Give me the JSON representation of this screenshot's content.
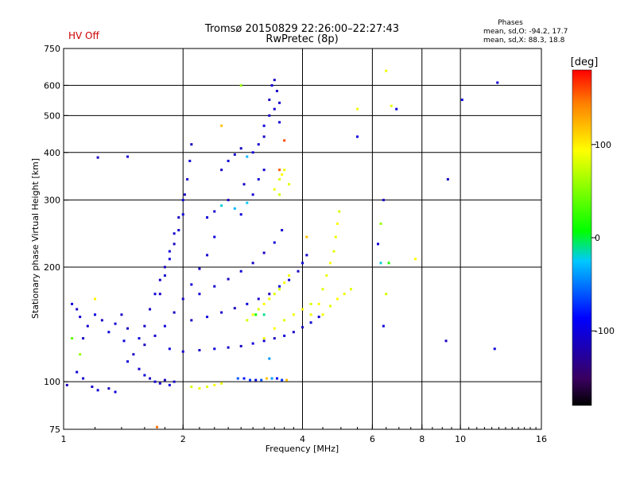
{
  "header": {
    "title_line1": "Tromsø 20150829 22:26:00–22:27:43",
    "title_line2": "RwPretec (8p)",
    "status": "HV Off",
    "status_color": "#cc0000",
    "phases_title": "Phases",
    "phases_o": "mean, sd,O: -94.2, 17.7",
    "phases_x": "mean, sd,X: 88.3, 18.8"
  },
  "colorbar": {
    "unit_label": "[deg]",
    "min": -180,
    "max": 180,
    "ticks": [
      {
        "value": 100,
        "label": "100"
      },
      {
        "value": 0,
        "label": "0"
      },
      {
        "value": -100,
        "label": "-100"
      }
    ],
    "colors": [
      "#000000",
      "#3a0060",
      "#0000ff",
      "#00c8ff",
      "#00ff00",
      "#ffff00",
      "#ff8000",
      "#ff0000"
    ]
  },
  "chart_data": {
    "type": "scatter",
    "title": "Tromsø 20150829 22:26:00–22:27:43",
    "subtitle": "RwPretec (8p)",
    "xlabel": "Frequency [MHz]",
    "ylabel": "Stationary phase Virtual Height [km]",
    "x_scale": "log",
    "y_scale": "log",
    "xlim": [
      1,
      16
    ],
    "ylim": [
      75,
      750
    ],
    "grid": true,
    "x_ticks": [
      {
        "value": 1,
        "label": "1"
      },
      {
        "value": 2,
        "label": "2"
      },
      {
        "value": 4,
        "label": "4"
      },
      {
        "value": 6,
        "label": "6"
      },
      {
        "value": 8,
        "label": "8"
      },
      {
        "value": 10,
        "label": "10"
      },
      {
        "value": 16,
        "label": "16"
      }
    ],
    "y_ticks": [
      {
        "value": 75,
        "label": "75"
      },
      {
        "value": 100,
        "label": "100"
      },
      {
        "value": 200,
        "label": "200"
      },
      {
        "value": 300,
        "label": "300"
      },
      {
        "value": 400,
        "label": "400"
      },
      {
        "value": 500,
        "label": "500"
      },
      {
        "value": 600,
        "label": "600"
      },
      {
        "value": 750,
        "label": "750"
      }
    ],
    "x_grid": [
      2,
      4,
      6,
      8,
      10
    ],
    "y_grid": [
      100,
      200,
      300,
      400,
      500,
      600
    ],
    "color_by": "phase_deg",
    "series": [
      {
        "points": [
          [
            1.02,
            98,
            -110
          ],
          [
            1.08,
            106,
            -100
          ],
          [
            1.12,
            102,
            -105
          ],
          [
            1.18,
            97,
            -108
          ],
          [
            1.22,
            95,
            -100
          ],
          [
            1.3,
            96,
            -112
          ],
          [
            1.35,
            94,
            -100
          ],
          [
            1.12,
            130,
            -110
          ],
          [
            1.15,
            140,
            -105
          ],
          [
            1.2,
            150,
            -100
          ],
          [
            1.25,
            145,
            -110
          ],
          [
            1.3,
            135,
            -100
          ],
          [
            1.35,
            142,
            -105
          ],
          [
            1.4,
            150,
            -108
          ],
          [
            1.42,
            128,
            -100
          ],
          [
            1.45,
            138,
            -110
          ],
          [
            1.05,
            160,
            -100
          ],
          [
            1.08,
            155,
            -110
          ],
          [
            1.1,
            148,
            -105
          ],
          [
            1.22,
            388,
            -110
          ],
          [
            1.45,
            390,
            -105
          ],
          [
            1.45,
            113,
            -100
          ],
          [
            1.5,
            118,
            -110
          ],
          [
            1.55,
            108,
            -105
          ],
          [
            1.6,
            104,
            -100
          ],
          [
            1.65,
            102,
            -110
          ],
          [
            1.7,
            100,
            -100
          ],
          [
            1.75,
            99,
            -105
          ],
          [
            1.8,
            101,
            -110
          ],
          [
            1.85,
            98,
            -100
          ],
          [
            1.9,
            100,
            -105
          ],
          [
            1.55,
            130,
            -100
          ],
          [
            1.6,
            140,
            -105
          ],
          [
            1.65,
            155,
            -110
          ],
          [
            1.7,
            170,
            -100
          ],
          [
            1.75,
            185,
            -105
          ],
          [
            1.8,
            200,
            -110
          ],
          [
            1.85,
            220,
            -100
          ],
          [
            1.9,
            245,
            -105
          ],
          [
            1.95,
            270,
            -110
          ],
          [
            2.0,
            300,
            -100
          ],
          [
            1.6,
            125,
            -110
          ],
          [
            1.7,
            132,
            -105
          ],
          [
            1.8,
            140,
            -100
          ],
          [
            1.9,
            152,
            -110
          ],
          [
            2.0,
            165,
            -105
          ],
          [
            2.1,
            180,
            -100
          ],
          [
            2.2,
            198,
            -110
          ],
          [
            2.3,
            215,
            -105
          ],
          [
            2.4,
            240,
            -100
          ],
          [
            1.75,
            170,
            -110
          ],
          [
            1.8,
            190,
            -105
          ],
          [
            1.85,
            210,
            -100
          ],
          [
            1.9,
            230,
            -110
          ],
          [
            1.95,
            250,
            -105
          ],
          [
            2.0,
            275,
            -100
          ],
          [
            2.02,
            310,
            -110
          ],
          [
            2.05,
            340,
            -105
          ],
          [
            2.08,
            380,
            -100
          ],
          [
            2.1,
            420,
            -110
          ],
          [
            1.85,
            122,
            -100
          ],
          [
            2.0,
            120,
            -105
          ],
          [
            2.2,
            121,
            -110
          ],
          [
            2.4,
            122,
            -100
          ],
          [
            2.6,
            123,
            -105
          ],
          [
            2.8,
            124,
            -110
          ],
          [
            3.0,
            126,
            -100
          ],
          [
            3.2,
            128,
            -105
          ],
          [
            3.4,
            130,
            -110
          ],
          [
            3.6,
            132,
            -100
          ],
          [
            3.8,
            135,
            -105
          ],
          [
            4.0,
            139,
            -110
          ],
          [
            4.2,
            143,
            -100
          ],
          [
            4.4,
            148,
            -105
          ],
          [
            2.1,
            145,
            -110
          ],
          [
            2.3,
            148,
            -100
          ],
          [
            2.5,
            152,
            -105
          ],
          [
            2.7,
            156,
            -110
          ],
          [
            2.9,
            160,
            -100
          ],
          [
            3.1,
            165,
            -105
          ],
          [
            3.3,
            170,
            -110
          ],
          [
            3.5,
            178,
            -100
          ],
          [
            3.7,
            185,
            -105
          ],
          [
            3.9,
            195,
            -110
          ],
          [
            4.0,
            205,
            -100
          ],
          [
            4.1,
            215,
            -105
          ],
          [
            2.2,
            170,
            -100
          ],
          [
            2.4,
            178,
            -105
          ],
          [
            2.6,
            186,
            -110
          ],
          [
            2.8,
            195,
            -100
          ],
          [
            3.0,
            205,
            -105
          ],
          [
            3.2,
            218,
            -110
          ],
          [
            3.4,
            232,
            -100
          ],
          [
            3.55,
            250,
            -105
          ],
          [
            2.3,
            270,
            -100
          ],
          [
            2.4,
            280,
            -105
          ],
          [
            2.5,
            290,
            -20
          ],
          [
            2.6,
            300,
            -110
          ],
          [
            2.7,
            285,
            -30
          ],
          [
            2.8,
            275,
            -100
          ],
          [
            2.9,
            295,
            -25
          ],
          [
            3.0,
            310,
            -105
          ],
          [
            2.85,
            330,
            -110
          ],
          [
            3.1,
            340,
            -100
          ],
          [
            3.2,
            360,
            -105
          ],
          [
            2.5,
            360,
            -110
          ],
          [
            2.6,
            380,
            -100
          ],
          [
            2.7,
            395,
            -105
          ],
          [
            2.8,
            410,
            -110
          ],
          [
            2.9,
            390,
            -30
          ],
          [
            3.0,
            400,
            -100
          ],
          [
            3.1,
            420,
            -105
          ],
          [
            3.2,
            440,
            -110
          ],
          [
            3.2,
            470,
            -100
          ],
          [
            3.3,
            500,
            -105
          ],
          [
            3.3,
            550,
            -110
          ],
          [
            3.35,
            600,
            -100
          ],
          [
            3.4,
            520,
            -105
          ],
          [
            3.45,
            580,
            -110
          ],
          [
            3.5,
            480,
            -100
          ],
          [
            3.5,
            540,
            -105
          ],
          [
            3.4,
            620,
            -110
          ],
          [
            2.75,
            102,
            -60
          ],
          [
            2.85,
            102,
            -80
          ],
          [
            2.95,
            101,
            -70
          ],
          [
            3.05,
            101,
            -100
          ],
          [
            3.15,
            101,
            -60
          ],
          [
            3.25,
            102,
            120
          ],
          [
            3.35,
            102,
            -40
          ],
          [
            3.45,
            102,
            -90
          ],
          [
            3.55,
            101,
            -70
          ],
          [
            2.9,
            145,
            80
          ],
          [
            3.0,
            150,
            90
          ],
          [
            3.1,
            155,
            85
          ],
          [
            3.2,
            160,
            95
          ],
          [
            3.3,
            165,
            90
          ],
          [
            3.4,
            170,
            85
          ],
          [
            3.5,
            175,
            80
          ],
          [
            3.6,
            182,
            95
          ],
          [
            3.7,
            190,
            90
          ],
          [
            3.2,
            130,
            90
          ],
          [
            3.4,
            138,
            95
          ],
          [
            3.6,
            145,
            85
          ],
          [
            3.8,
            150,
            90
          ],
          [
            4.0,
            155,
            95
          ],
          [
            4.2,
            160,
            80
          ],
          [
            3.4,
            320,
            90
          ],
          [
            3.5,
            340,
            85
          ],
          [
            3.55,
            350,
            95
          ],
          [
            3.6,
            360,
            90
          ],
          [
            3.7,
            330,
            85
          ],
          [
            3.5,
            310,
            80
          ],
          [
            4.2,
            150,
            90
          ],
          [
            4.4,
            160,
            95
          ],
          [
            4.5,
            175,
            85
          ],
          [
            4.6,
            190,
            90
          ],
          [
            4.7,
            205,
            95
          ],
          [
            4.8,
            220,
            85
          ],
          [
            4.85,
            240,
            90
          ],
          [
            4.9,
            260,
            95
          ],
          [
            4.95,
            280,
            80
          ],
          [
            4.5,
            150,
            90
          ],
          [
            4.7,
            158,
            85
          ],
          [
            4.9,
            165,
            95
          ],
          [
            5.1,
            170,
            90
          ],
          [
            5.3,
            175,
            85
          ],
          [
            2.1,
            97,
            80
          ],
          [
            2.2,
            96,
            90
          ],
          [
            2.3,
            97,
            85
          ],
          [
            2.4,
            98,
            95
          ],
          [
            2.5,
            99,
            90
          ],
          [
            5.5,
            440,
            -100
          ],
          [
            6.4,
            300,
            -110
          ],
          [
            6.9,
            520,
            -100
          ],
          [
            6.7,
            530,
            85
          ],
          [
            9.3,
            340,
            -110
          ],
          [
            10.1,
            550,
            -100
          ],
          [
            12.4,
            610,
            -105
          ],
          [
            12.2,
            122,
            -100
          ],
          [
            9.2,
            128,
            -110
          ],
          [
            6.2,
            230,
            -100
          ],
          [
            6.3,
            205,
            -20
          ],
          [
            6.6,
            205,
            20
          ],
          [
            6.3,
            260,
            60
          ],
          [
            6.4,
            140,
            -100
          ],
          [
            5.5,
            520,
            90
          ],
          [
            6.5,
            655,
            90
          ],
          [
            7.7,
            210,
            95
          ],
          [
            6.5,
            170,
            80
          ],
          [
            1.2,
            165,
            100
          ],
          [
            1.05,
            130,
            40
          ],
          [
            1.1,
            118,
            60
          ],
          [
            1.72,
            76,
            150
          ],
          [
            2.5,
            470,
            120
          ],
          [
            2.8,
            600,
            60
          ],
          [
            3.6,
            430,
            160
          ],
          [
            3.5,
            360,
            155
          ],
          [
            3.2,
            150,
            -10
          ],
          [
            3.05,
            150,
            10
          ],
          [
            3.65,
            101,
            120
          ],
          [
            3.3,
            115,
            -40
          ],
          [
            4.1,
            240,
            120
          ]
        ]
      }
    ]
  }
}
